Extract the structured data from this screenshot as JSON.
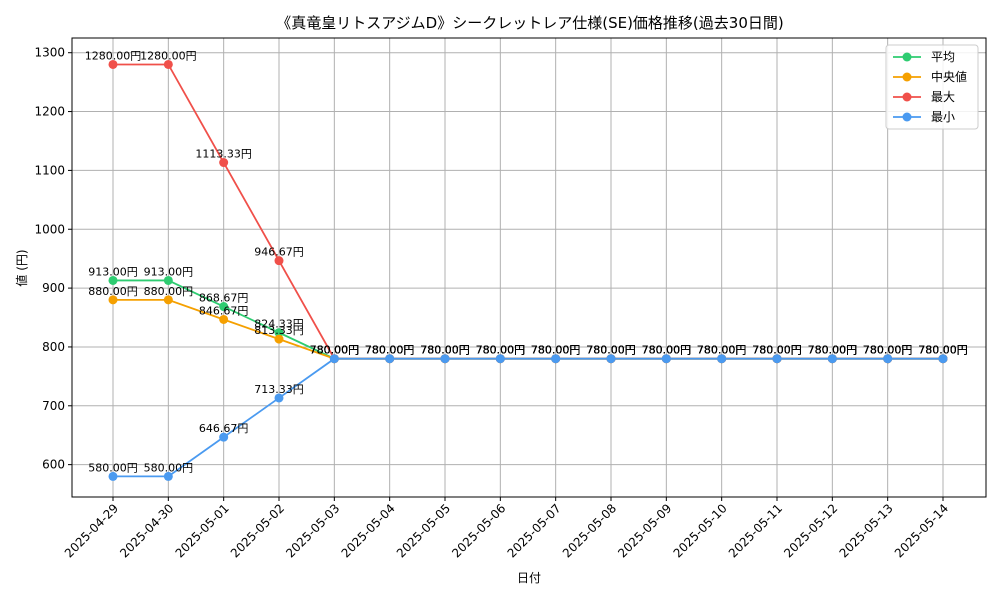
{
  "chart_data": {
    "type": "line",
    "title": "《真竜皇リトスアジムD》シークレットレア仕様(SE)価格推移(過去30日間)",
    "xlabel": "日付",
    "ylabel": "値 (円)",
    "ylim": [
      545,
      1325
    ],
    "yticks": [
      600,
      700,
      800,
      900,
      1000,
      1100,
      1200,
      1300
    ],
    "categories": [
      "2025-04-29",
      "2025-04-30",
      "2025-05-01",
      "2025-05-02",
      "2025-05-03",
      "2025-05-04",
      "2025-05-05",
      "2025-05-06",
      "2025-05-07",
      "2025-05-08",
      "2025-05-09",
      "2025-05-10",
      "2025-05-11",
      "2025-05-12",
      "2025-05-13",
      "2025-05-14"
    ],
    "legend_position": "top-right",
    "grid": true,
    "unit_suffix": "円",
    "series": [
      {
        "name": "平均",
        "color": "#2ecc71",
        "values": [
          913.0,
          913.0,
          868.67,
          824.33,
          780.0,
          780.0,
          780.0,
          780.0,
          780.0,
          780.0,
          780.0,
          780.0,
          780.0,
          780.0,
          780.0,
          780.0
        ]
      },
      {
        "name": "中央値",
        "color": "#f5a000",
        "values": [
          880.0,
          880.0,
          846.67,
          813.33,
          780.0,
          780.0,
          780.0,
          780.0,
          780.0,
          780.0,
          780.0,
          780.0,
          780.0,
          780.0,
          780.0,
          780.0
        ]
      },
      {
        "name": "最大",
        "color": "#f0504a",
        "values": [
          1280.0,
          1280.0,
          1113.33,
          946.67,
          780.0,
          780.0,
          780.0,
          780.0,
          780.0,
          780.0,
          780.0,
          780.0,
          780.0,
          780.0,
          780.0,
          780.0
        ]
      },
      {
        "name": "最小",
        "color": "#4a9af0",
        "values": [
          580.0,
          580.0,
          646.67,
          713.33,
          780.0,
          780.0,
          780.0,
          780.0,
          780.0,
          780.0,
          780.0,
          780.0,
          780.0,
          780.0,
          780.0,
          780.0
        ]
      }
    ]
  }
}
